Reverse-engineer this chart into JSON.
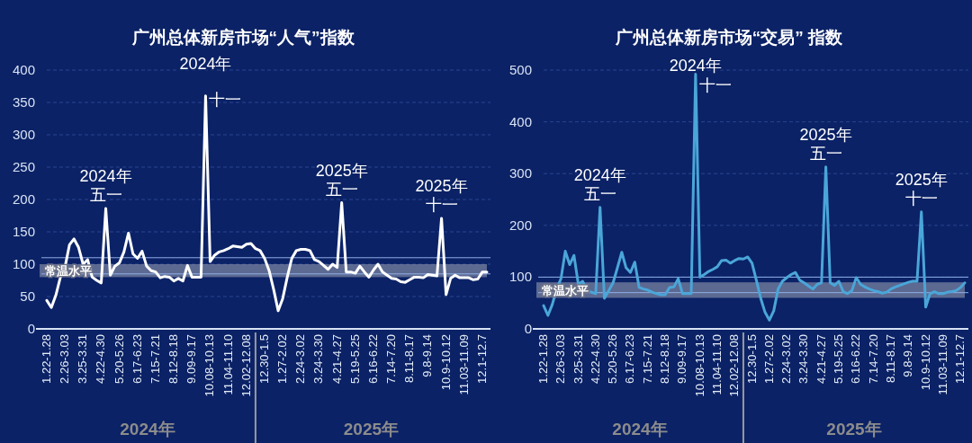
{
  "chart_data": [
    {
      "type": "line",
      "title": "广州总体新房市场“人气”指数",
      "categories": [
        "1.22-1.28",
        null,
        null,
        null,
        "2.26-3.03",
        null,
        null,
        null,
        "3.25-3.31",
        null,
        null,
        null,
        "4.22-4.30",
        null,
        null,
        null,
        "5.20-5.26",
        null,
        null,
        null,
        "6.17-6.23",
        null,
        null,
        null,
        "7.15-7.21",
        null,
        null,
        null,
        "8.12-8.18",
        null,
        null,
        null,
        "9.09-9.17",
        null,
        null,
        null,
        "10.08-10.13",
        null,
        null,
        null,
        "11.04-11.10",
        null,
        null,
        null,
        "12.02-12.08",
        null,
        null,
        null,
        "12.30-1.5",
        null,
        null,
        null,
        "1.27-2.02",
        null,
        null,
        null,
        "2.24-3.02",
        null,
        null,
        null,
        "3.24-3.30",
        null,
        null,
        null,
        "4.21-4.27",
        null,
        null,
        null,
        "5.19-5.25",
        null,
        null,
        null,
        "6.16-6.22",
        null,
        null,
        null,
        "7.14-7.20",
        null,
        null,
        null,
        "8.11-8.17",
        null,
        null,
        null,
        "9.8-9.14",
        null,
        null,
        null,
        "10.9-10.12",
        null,
        null,
        null,
        "11.03-11.09",
        null,
        null,
        null,
        "12.1-12.7",
        null
      ],
      "series": [
        {
          "color": "#ffffff",
          "values": [
            44,
            33,
            52,
            80,
            95,
            130,
            139,
            126,
            100,
            107,
            80,
            75,
            71,
            186,
            83,
            97,
            102,
            119,
            148,
            116,
            109,
            120,
            97,
            90,
            88,
            79,
            81,
            80,
            74,
            78,
            74,
            98,
            80,
            80,
            80,
            360,
            104,
            114,
            119,
            121,
            124,
            128,
            127,
            126,
            131,
            132,
            124,
            121,
            109,
            90,
            61,
            28,
            47,
            80,
            109,
            121,
            123,
            123,
            121,
            107,
            104,
            98,
            92,
            100,
            95,
            195,
            88,
            88,
            86,
            97,
            88,
            80,
            91,
            100,
            88,
            83,
            78,
            77,
            73,
            72,
            76,
            80,
            80,
            79,
            84,
            83,
            82,
            171,
            53,
            78,
            83,
            79,
            79,
            79,
            76,
            77,
            88,
            88
          ]
        }
      ],
      "ylim": [
        0,
        400
      ],
      "yticks": [
        0,
        50,
        100,
        150,
        200,
        250,
        300,
        350,
        400
      ],
      "grid": "y",
      "marker": "none",
      "line_style": "solid",
      "bands": [
        {
          "axis": "y",
          "from": 80,
          "to": 100,
          "label": "常温水平",
          "color": "#a0a4b4"
        }
      ],
      "ref_lines": [
        {
          "axis": "y",
          "value": 110,
          "color": "#8fb0e8"
        },
        {
          "axis": "y",
          "value": 85,
          "color": "#8fb0e8"
        }
      ],
      "annotations": [
        {
          "text": "2024年五一",
          "y": 186
        },
        {
          "text": "2024年十一",
          "y": 360
        },
        {
          "text": "2025年五一",
          "y": 195
        },
        {
          "text": "2025年十一",
          "y": 171
        },
        "2024年",
        "2025年"
      ]
    },
    {
      "type": "line",
      "title": "广州总体新房市场“交易” 指数",
      "categories": [
        "1.22-1.28",
        null,
        null,
        null,
        "2.26-3.03",
        null,
        null,
        null,
        "3.25-3.31",
        null,
        null,
        null,
        "4.22-4.30",
        null,
        null,
        null,
        "5.20-5.26",
        null,
        null,
        null,
        "6.17-6.23",
        null,
        null,
        null,
        "7.15-7.21",
        null,
        null,
        null,
        "8.12-8.18",
        null,
        null,
        null,
        "9.09-9.17",
        null,
        null,
        null,
        "10.08-10.13",
        null,
        null,
        null,
        "11.04-11.10",
        null,
        null,
        null,
        "12.02-12.08",
        null,
        null,
        null,
        "12.30-1.5",
        null,
        null,
        null,
        "1.27-2.02",
        null,
        null,
        null,
        "2.24-3.02",
        null,
        null,
        null,
        "3.24-3.30",
        null,
        null,
        null,
        "4.21-4.27",
        null,
        null,
        null,
        "5.19-5.25",
        null,
        null,
        null,
        "6.16-6.22",
        null,
        null,
        null,
        "7.14-7.20",
        null,
        null,
        null,
        "8.11-8.17",
        null,
        null,
        null,
        "9.8-9.14",
        null,
        null,
        null,
        "10.9-10.12",
        null,
        null,
        null,
        "11.03-11.09",
        null,
        null,
        null,
        "12.1-12.7",
        null
      ],
      "series": [
        {
          "color": "#4aa6d8",
          "values": [
            45,
            26,
            47,
            77,
            97,
            150,
            124,
            142,
            86,
            92,
            74,
            71,
            68,
            235,
            59,
            74,
            89,
            118,
            148,
            118,
            109,
            129,
            80,
            77,
            75,
            71,
            68,
            66,
            66,
            80,
            81,
            97,
            68,
            68,
            68,
            492,
            100,
            105,
            111,
            115,
            120,
            132,
            133,
            127,
            132,
            136,
            135,
            139,
            127,
            94,
            59,
            32,
            17,
            35,
            77,
            92,
            99,
            105,
            109,
            94,
            89,
            83,
            77,
            86,
            89,
            313,
            89,
            84,
            92,
            72,
            68,
            74,
            99,
            86,
            81,
            77,
            74,
            72,
            69,
            71,
            77,
            81,
            84,
            87,
            90,
            92,
            92,
            226,
            42,
            68,
            72,
            68,
            68,
            71,
            72,
            74,
            80,
            89
          ]
        }
      ],
      "ylim": [
        0,
        500
      ],
      "yticks": [
        0,
        100,
        200,
        300,
        400,
        500
      ],
      "grid": "y",
      "marker": "none",
      "line_style": "solid",
      "bands": [
        {
          "axis": "y",
          "from": 60,
          "to": 90,
          "label": "常温水平",
          "color": "#a0a4b4"
        }
      ],
      "ref_lines": [
        {
          "axis": "y",
          "value": 100,
          "color": "#8fb0e8"
        },
        {
          "axis": "y",
          "value": 70,
          "color": "#8fb0e8"
        }
      ],
      "annotations": [
        {
          "text": "2024年五一",
          "y": 235
        },
        {
          "text": "2024年十一",
          "y": 492
        },
        {
          "text": "2025年五一",
          "y": 313
        },
        {
          "text": "2025年十一",
          "y": 226
        },
        "2024年",
        "2025年"
      ]
    }
  ]
}
